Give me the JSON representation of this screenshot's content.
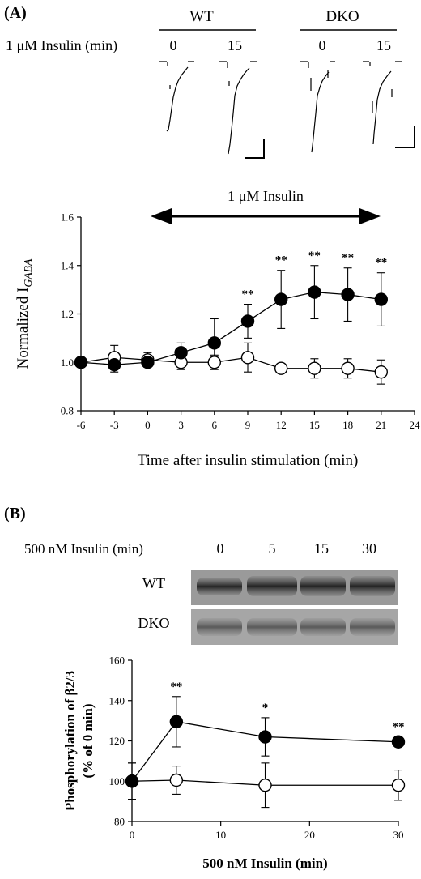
{
  "panel_a": {
    "label": "(A)",
    "groups": {
      "wt": "WT",
      "dko": "DKO"
    },
    "condition_label": "1 μM Insulin (min)",
    "trace_times": {
      "wt_first": "0",
      "wt_second": "15",
      "dko_first": "0",
      "dko_second": "15"
    },
    "arrow_label": "1 μM Insulin"
  },
  "panel_b": {
    "label": "(B)",
    "condition_label": "500 nM Insulin (min)",
    "blot_times": [
      "0",
      "5",
      "15",
      "30"
    ],
    "blot_rows": [
      "WT",
      "DKO"
    ]
  },
  "chart_data": [
    {
      "type": "line",
      "ylabel": "Normalized I",
      "ylabel_subscript": "GABA",
      "xlabel": "Time after insulin stimulation (min)",
      "xlim": [
        -6,
        24
      ],
      "ylim": [
        0.8,
        1.6
      ],
      "xticks": [
        "-6",
        "-3",
        "0",
        "3",
        "6",
        "9",
        "12",
        "15",
        "18",
        "21",
        "24"
      ],
      "yticks": [
        "0.8",
        "1.0",
        "1.2",
        "1.4",
        "1.6"
      ],
      "x": [
        -6,
        -3,
        0,
        3,
        6,
        9,
        12,
        15,
        18,
        21
      ],
      "series": [
        {
          "marker": "filled",
          "color": "#000000",
          "values": [
            1.0,
            0.99,
            1.0,
            1.04,
            1.08,
            1.17,
            1.26,
            1.29,
            1.28,
            1.26
          ],
          "errors": [
            0.0,
            0.03,
            0.02,
            0.04,
            0.1,
            0.07,
            0.12,
            0.11,
            0.11,
            0.11
          ]
        },
        {
          "marker": "open",
          "color": "#000000",
          "values": [
            1.0,
            1.02,
            1.01,
            1.0,
            1.0,
            1.02,
            0.975,
            0.975,
            0.975,
            0.96
          ],
          "errors": [
            0.0,
            0.05,
            0.03,
            0.03,
            0.03,
            0.06,
            0.0,
            0.04,
            0.04,
            0.05
          ]
        }
      ],
      "significance": [
        {
          "x": 9,
          "label": "**"
        },
        {
          "x": 12,
          "label": "**"
        },
        {
          "x": 15,
          "label": "**"
        },
        {
          "x": 18,
          "label": "**"
        },
        {
          "x": 21,
          "label": "**"
        }
      ]
    },
    {
      "type": "line",
      "ylabel": "Phosphorylation of β2/3",
      "ylabel2": "(% of 0 min)",
      "xlabel": "500 nM Insulin (min)",
      "xlim": [
        0,
        30
      ],
      "ylim": [
        80,
        160
      ],
      "xticks": [
        "0",
        "10",
        "20",
        "30"
      ],
      "yticks": [
        "80",
        "100",
        "120",
        "140",
        "160"
      ],
      "x": [
        0,
        5,
        15,
        30
      ],
      "series": [
        {
          "marker": "filled",
          "color": "#000000",
          "values": [
            100,
            129.5,
            122,
            119.5
          ],
          "errors": [
            9,
            12.5,
            9.5,
            2.5
          ]
        },
        {
          "marker": "open",
          "color": "#000000",
          "values": [
            100,
            100.5,
            98,
            98
          ],
          "errors": [
            9,
            7,
            11,
            7.5
          ]
        }
      ],
      "significance": [
        {
          "x": 5,
          "label": "**"
        },
        {
          "x": 15,
          "label": "*"
        },
        {
          "x": 30,
          "label": "**"
        }
      ]
    }
  ]
}
